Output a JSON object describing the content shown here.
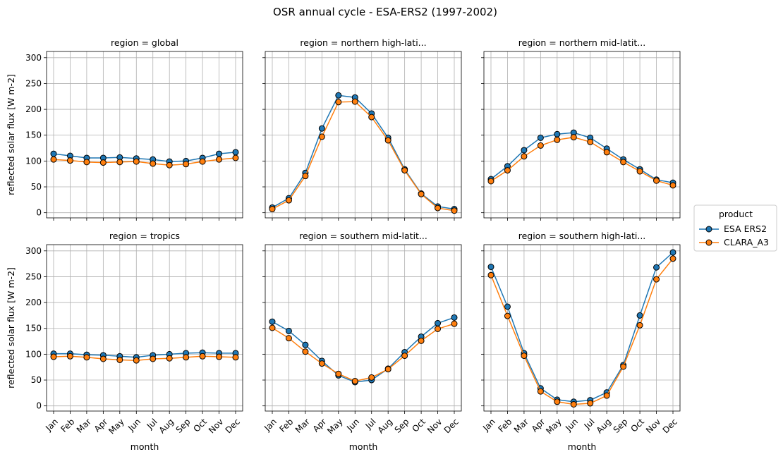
{
  "chart_data": {
    "type": "line",
    "title": "OSR annual cycle - ESA-ERS2 (1997-2002)",
    "xlabel": "month",
    "ylabel": "reflected solar flux [W m-2]",
    "ylim": [
      -10,
      312
    ],
    "yticks": [
      0,
      50,
      100,
      150,
      200,
      250,
      300
    ],
    "grid": true,
    "categories": [
      "Jan",
      "Feb",
      "Mar",
      "Apr",
      "May",
      "Jun",
      "Jul",
      "Aug",
      "Sep",
      "Oct",
      "Nov",
      "Dec"
    ],
    "legend": {
      "title": "product",
      "placement": "right",
      "entries": [
        "ESA ERS2",
        "CLARA_A3"
      ]
    },
    "colors": {
      "ESA ERS2": "#1f77b4",
      "CLARA_A3": "#ff7f0e"
    },
    "panels": [
      {
        "title": "region = global",
        "series": [
          {
            "name": "ESA ERS2",
            "values": [
              114,
              110,
              106,
              106,
              107,
              105,
              103,
              99,
              100,
              106,
              114,
              117
            ]
          },
          {
            "name": "CLARA_A3",
            "values": [
              103,
              101,
              98,
              97,
              98,
              99,
              95,
              92,
              94,
              99,
              103,
              106
            ]
          }
        ]
      },
      {
        "title": "region = northern high-lati...",
        "series": [
          {
            "name": "ESA ERS2",
            "values": [
              10,
              28,
              77,
              163,
              227,
              223,
              192,
              145,
              84,
              37,
              12,
              7
            ]
          },
          {
            "name": "CLARA_A3",
            "values": [
              7,
              24,
              71,
              147,
              214,
              215,
              185,
              140,
              82,
              36,
              9,
              4
            ]
          }
        ]
      },
      {
        "title": "region = northern mid-latit...",
        "series": [
          {
            "name": "ESA ERS2",
            "values": [
              65,
              90,
              121,
              145,
              152,
              155,
              145,
              124,
              103,
              84,
              64,
              58
            ]
          },
          {
            "name": "CLARA_A3",
            "values": [
              61,
              82,
              109,
              130,
              141,
              146,
              137,
              117,
              98,
              80,
              62,
              53
            ]
          }
        ]
      },
      {
        "title": "region = tropics",
        "series": [
          {
            "name": "ESA ERS2",
            "values": [
              101,
              101,
              99,
              98,
              96,
              94,
              98,
              100,
              102,
              103,
              102,
              102
            ]
          },
          {
            "name": "CLARA_A3",
            "values": [
              95,
              96,
              94,
              91,
              89,
              88,
              91,
              92,
              94,
              96,
              95,
              94
            ]
          }
        ]
      },
      {
        "title": "region = southern mid-latit...",
        "series": [
          {
            "name": "ESA ERS2",
            "values": [
              163,
              145,
              118,
              87,
              59,
              46,
              50,
              72,
              104,
              134,
              160,
              171
            ]
          },
          {
            "name": "CLARA_A3",
            "values": [
              151,
              131,
              105,
              82,
              62,
              48,
              55,
              71,
              97,
              126,
              149,
              159
            ]
          }
        ]
      },
      {
        "title": "region = southern high-lati...",
        "series": [
          {
            "name": "ESA ERS2",
            "values": [
              269,
              192,
              102,
              34,
              12,
              8,
              11,
              26,
              79,
              175,
              268,
              297
            ]
          },
          {
            "name": "CLARA_A3",
            "values": [
              253,
              174,
              97,
              28,
              8,
              3,
              5,
              20,
              76,
              156,
              245,
              285
            ]
          }
        ]
      }
    ]
  }
}
